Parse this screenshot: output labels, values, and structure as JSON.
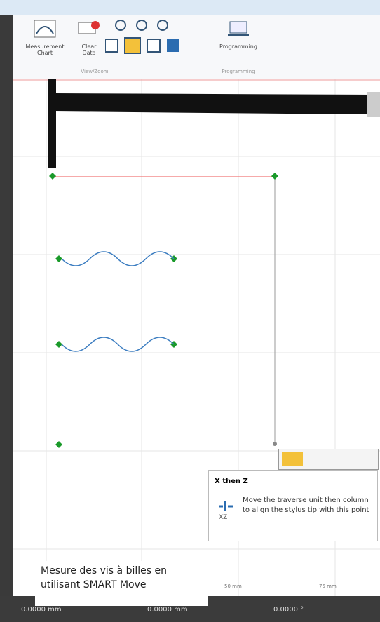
{
  "ribbon": {
    "buttons": [
      {
        "label": "Measurement Chart"
      },
      {
        "label": "Clear Data"
      },
      {
        "label": "Programming"
      }
    ],
    "groups": [
      "View/Zoom",
      "Programming"
    ]
  },
  "ruler": {
    "labels": [
      "50 mm",
      "75 mm"
    ]
  },
  "tooltip": {
    "title": "X then Z",
    "icon_label": "XZ",
    "text": "Move the traverse unit then column to align the stylus tip with this point"
  },
  "caption": "Mesure des vis à billes en utilisant SMART Move",
  "status": {
    "values": [
      "0.0000 mm",
      "0.0000 mm",
      "0.0000 °"
    ]
  }
}
